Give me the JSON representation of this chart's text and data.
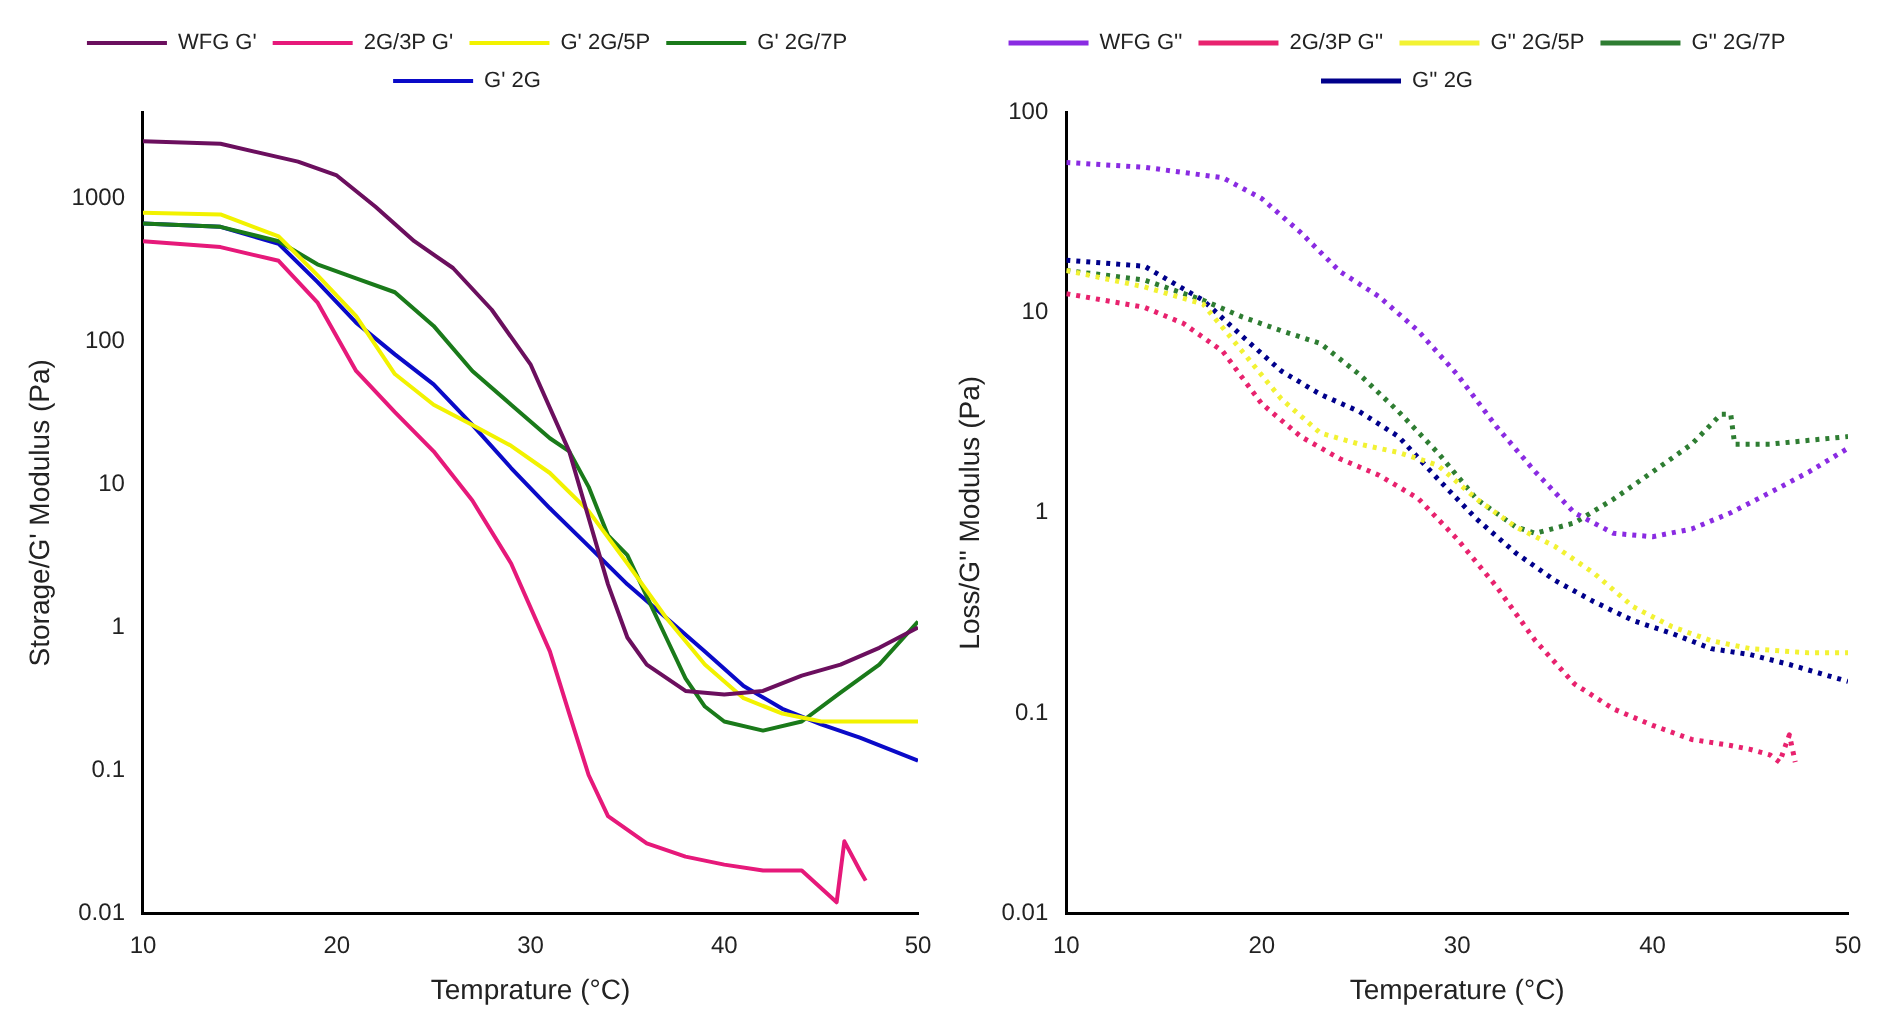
{
  "chart_data": [
    {
      "type": "line",
      "xlabel": "Temprature (°C)",
      "ylabel": "Storage/G' Modulus (Pa)",
      "xlim": [
        10,
        50
      ],
      "ylim": [
        0.01,
        4000
      ],
      "xticks": [
        10,
        20,
        30,
        40,
        50
      ],
      "yticks": [
        0.01,
        0.1,
        1,
        10,
        100,
        1000
      ],
      "log": "y",
      "grid": false,
      "legend": "top",
      "line_style": "solid",
      "series": [
        {
          "name": "WFG G'",
          "color": "#6b0f5e",
          "x": [
            10,
            14,
            18,
            20,
            22,
            24,
            26,
            28,
            30,
            32,
            34,
            35,
            36,
            38,
            40,
            42,
            44,
            46,
            48,
            50
          ],
          "values": [
            2500,
            2400,
            1800,
            1440,
            870,
            500,
            325,
            166,
            69,
            17,
            2.0,
            0.85,
            0.55,
            0.36,
            0.34,
            0.36,
            0.46,
            0.55,
            0.72,
            1.0
          ]
        },
        {
          "name": "2G/3P G'",
          "color": "#e6197a",
          "x": [
            10,
            14,
            17,
            19,
            21,
            23,
            25,
            27,
            29,
            31,
            32,
            33,
            34,
            36,
            38,
            40,
            42,
            44,
            45.8,
            46.2,
            47,
            47.3
          ],
          "values": [
            500,
            455,
            365,
            187,
            62,
            32,
            17,
            7.7,
            2.8,
            0.68,
            0.25,
            0.093,
            0.048,
            0.031,
            0.025,
            0.022,
            0.02,
            0.02,
            0.012,
            0.032,
            0.02,
            0.017
          ]
        },
        {
          "name": "G' 2G/5P",
          "color": "#f2f200",
          "x": [
            10,
            14,
            17,
            19,
            21,
            23,
            25,
            27,
            29,
            31,
            33,
            35,
            37,
            39,
            41,
            43,
            45,
            50
          ],
          "values": [
            790,
            770,
            540,
            290,
            150,
            59,
            36,
            26,
            18.6,
            12,
            6.5,
            2.8,
            1.17,
            0.55,
            0.32,
            0.25,
            0.22,
            0.22
          ]
        },
        {
          "name": "G' 2G/7P",
          "color": "#1a7a1a",
          "x": [
            10,
            14,
            17,
            19,
            21,
            23,
            25,
            27,
            29,
            31,
            32,
            33,
            34,
            35,
            36,
            37,
            38,
            39,
            40,
            42,
            44,
            46,
            48,
            50
          ],
          "values": [
            665,
            630,
            500,
            345,
            275,
            220,
            128,
            62,
            36,
            21,
            17,
            9.6,
            4.4,
            3.2,
            1.65,
            0.85,
            0.44,
            0.28,
            0.22,
            0.19,
            0.22,
            0.35,
            0.55,
            1.1
          ]
        },
        {
          "name": "G' 2G",
          "color": "#0a0ac8",
          "x": [
            10,
            14,
            17,
            19,
            21,
            23,
            25,
            27,
            29,
            31,
            33,
            35,
            37,
            39,
            41,
            43,
            45,
            47,
            50
          ],
          "values": [
            665,
            630,
            480,
            260,
            135,
            81,
            50,
            26,
            13,
            6.8,
            3.7,
            2.0,
            1.17,
            0.68,
            0.39,
            0.27,
            0.21,
            0.17,
            0.117
          ]
        }
      ]
    },
    {
      "type": "line",
      "xlabel": "Temperature (°C)",
      "ylabel": "Loss/G'' Modulus (Pa)",
      "xlim": [
        10,
        50
      ],
      "ylim": [
        0.01,
        100
      ],
      "xticks": [
        10,
        20,
        30,
        40,
        50
      ],
      "yticks": [
        0.01,
        0.1,
        1,
        10,
        100
      ],
      "log": "y",
      "grid": false,
      "legend": "top",
      "line_style": "dotted",
      "series": [
        {
          "name": "WFG G''",
          "color": "#8a2be2",
          "x": [
            10,
            14,
            18,
            20,
            22,
            24,
            26,
            28,
            30,
            32,
            34,
            36,
            38,
            40,
            42,
            44,
            46,
            48,
            50
          ],
          "values": [
            56,
            53,
            47,
            37,
            25,
            16,
            12,
            8.1,
            4.9,
            2.7,
            1.6,
            1.0,
            0.79,
            0.76,
            0.83,
            1.0,
            1.26,
            1.6,
            2.1
          ]
        },
        {
          "name": "2G/3P G''",
          "color": "#e8226e",
          "x": [
            10,
            14,
            16,
            18,
            20,
            22,
            24,
            26,
            28,
            30,
            32,
            34,
            36,
            38,
            40,
            42,
            44,
            45,
            46,
            46.5,
            47,
            47.3
          ],
          "values": [
            12.4,
            10.6,
            8.8,
            6.4,
            3.5,
            2.4,
            1.86,
            1.54,
            1.18,
            0.74,
            0.43,
            0.23,
            0.14,
            0.105,
            0.087,
            0.074,
            0.069,
            0.066,
            0.062,
            0.057,
            0.078,
            0.057
          ]
        },
        {
          "name": "G'' 2G/5P",
          "color": "#f2f233",
          "x": [
            10,
            14,
            17,
            19,
            21,
            23,
            25,
            27,
            29,
            31,
            33,
            35,
            37,
            39,
            41,
            43,
            45,
            48,
            50
          ],
          "values": [
            16.2,
            13.4,
            11,
            6.4,
            3.7,
            2.5,
            2.2,
            2.0,
            1.73,
            1.17,
            0.85,
            0.68,
            0.5,
            0.34,
            0.27,
            0.23,
            0.21,
            0.2,
            0.2
          ]
        },
        {
          "name": "G'' 2G/7P",
          "color": "#2e7d32",
          "x": [
            10,
            14,
            17,
            19,
            21,
            23,
            25,
            27,
            29,
            31,
            33,
            34,
            36,
            38,
            40,
            42,
            43.5,
            44,
            44.2,
            46,
            48,
            50
          ],
          "values": [
            16.2,
            14.5,
            11.5,
            9.5,
            8.1,
            7.0,
            4.9,
            3.2,
            2.0,
            1.17,
            0.85,
            0.79,
            0.89,
            1.17,
            1.6,
            2.2,
            3.1,
            3.1,
            2.2,
            2.2,
            2.3,
            2.4
          ]
        },
        {
          "name": "G'' 2G",
          "color": "#00008b",
          "x": [
            10,
            14,
            17,
            19,
            21,
            23,
            25,
            27,
            29,
            31,
            33,
            35,
            37,
            39,
            41,
            43,
            45,
            47,
            50
          ],
          "values": [
            18.2,
            17,
            11.5,
            7.6,
            5.1,
            3.9,
            3.2,
            2.4,
            1.48,
            0.93,
            0.63,
            0.46,
            0.36,
            0.29,
            0.25,
            0.21,
            0.196,
            0.175,
            0.144
          ]
        }
      ]
    }
  ]
}
